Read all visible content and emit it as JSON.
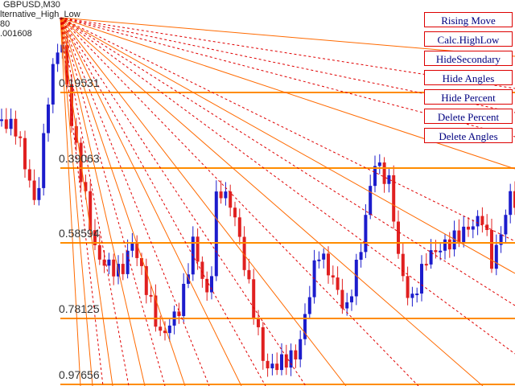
{
  "header": {
    "symbol": "GBPUSD,M30",
    "indicator": "lternative_High_Low",
    "line3": "80",
    "line4": ".001608"
  },
  "levels": [
    "0.19531",
    "0.39063",
    "0.58594",
    "0.78125",
    "0.97656"
  ],
  "buttons": [
    "Rising Move",
    "Calc.HighLow",
    "HideSecondary",
    "Hide Angles",
    "Hide Percent",
    "Delete Percent",
    "Delete Angles"
  ]
}
